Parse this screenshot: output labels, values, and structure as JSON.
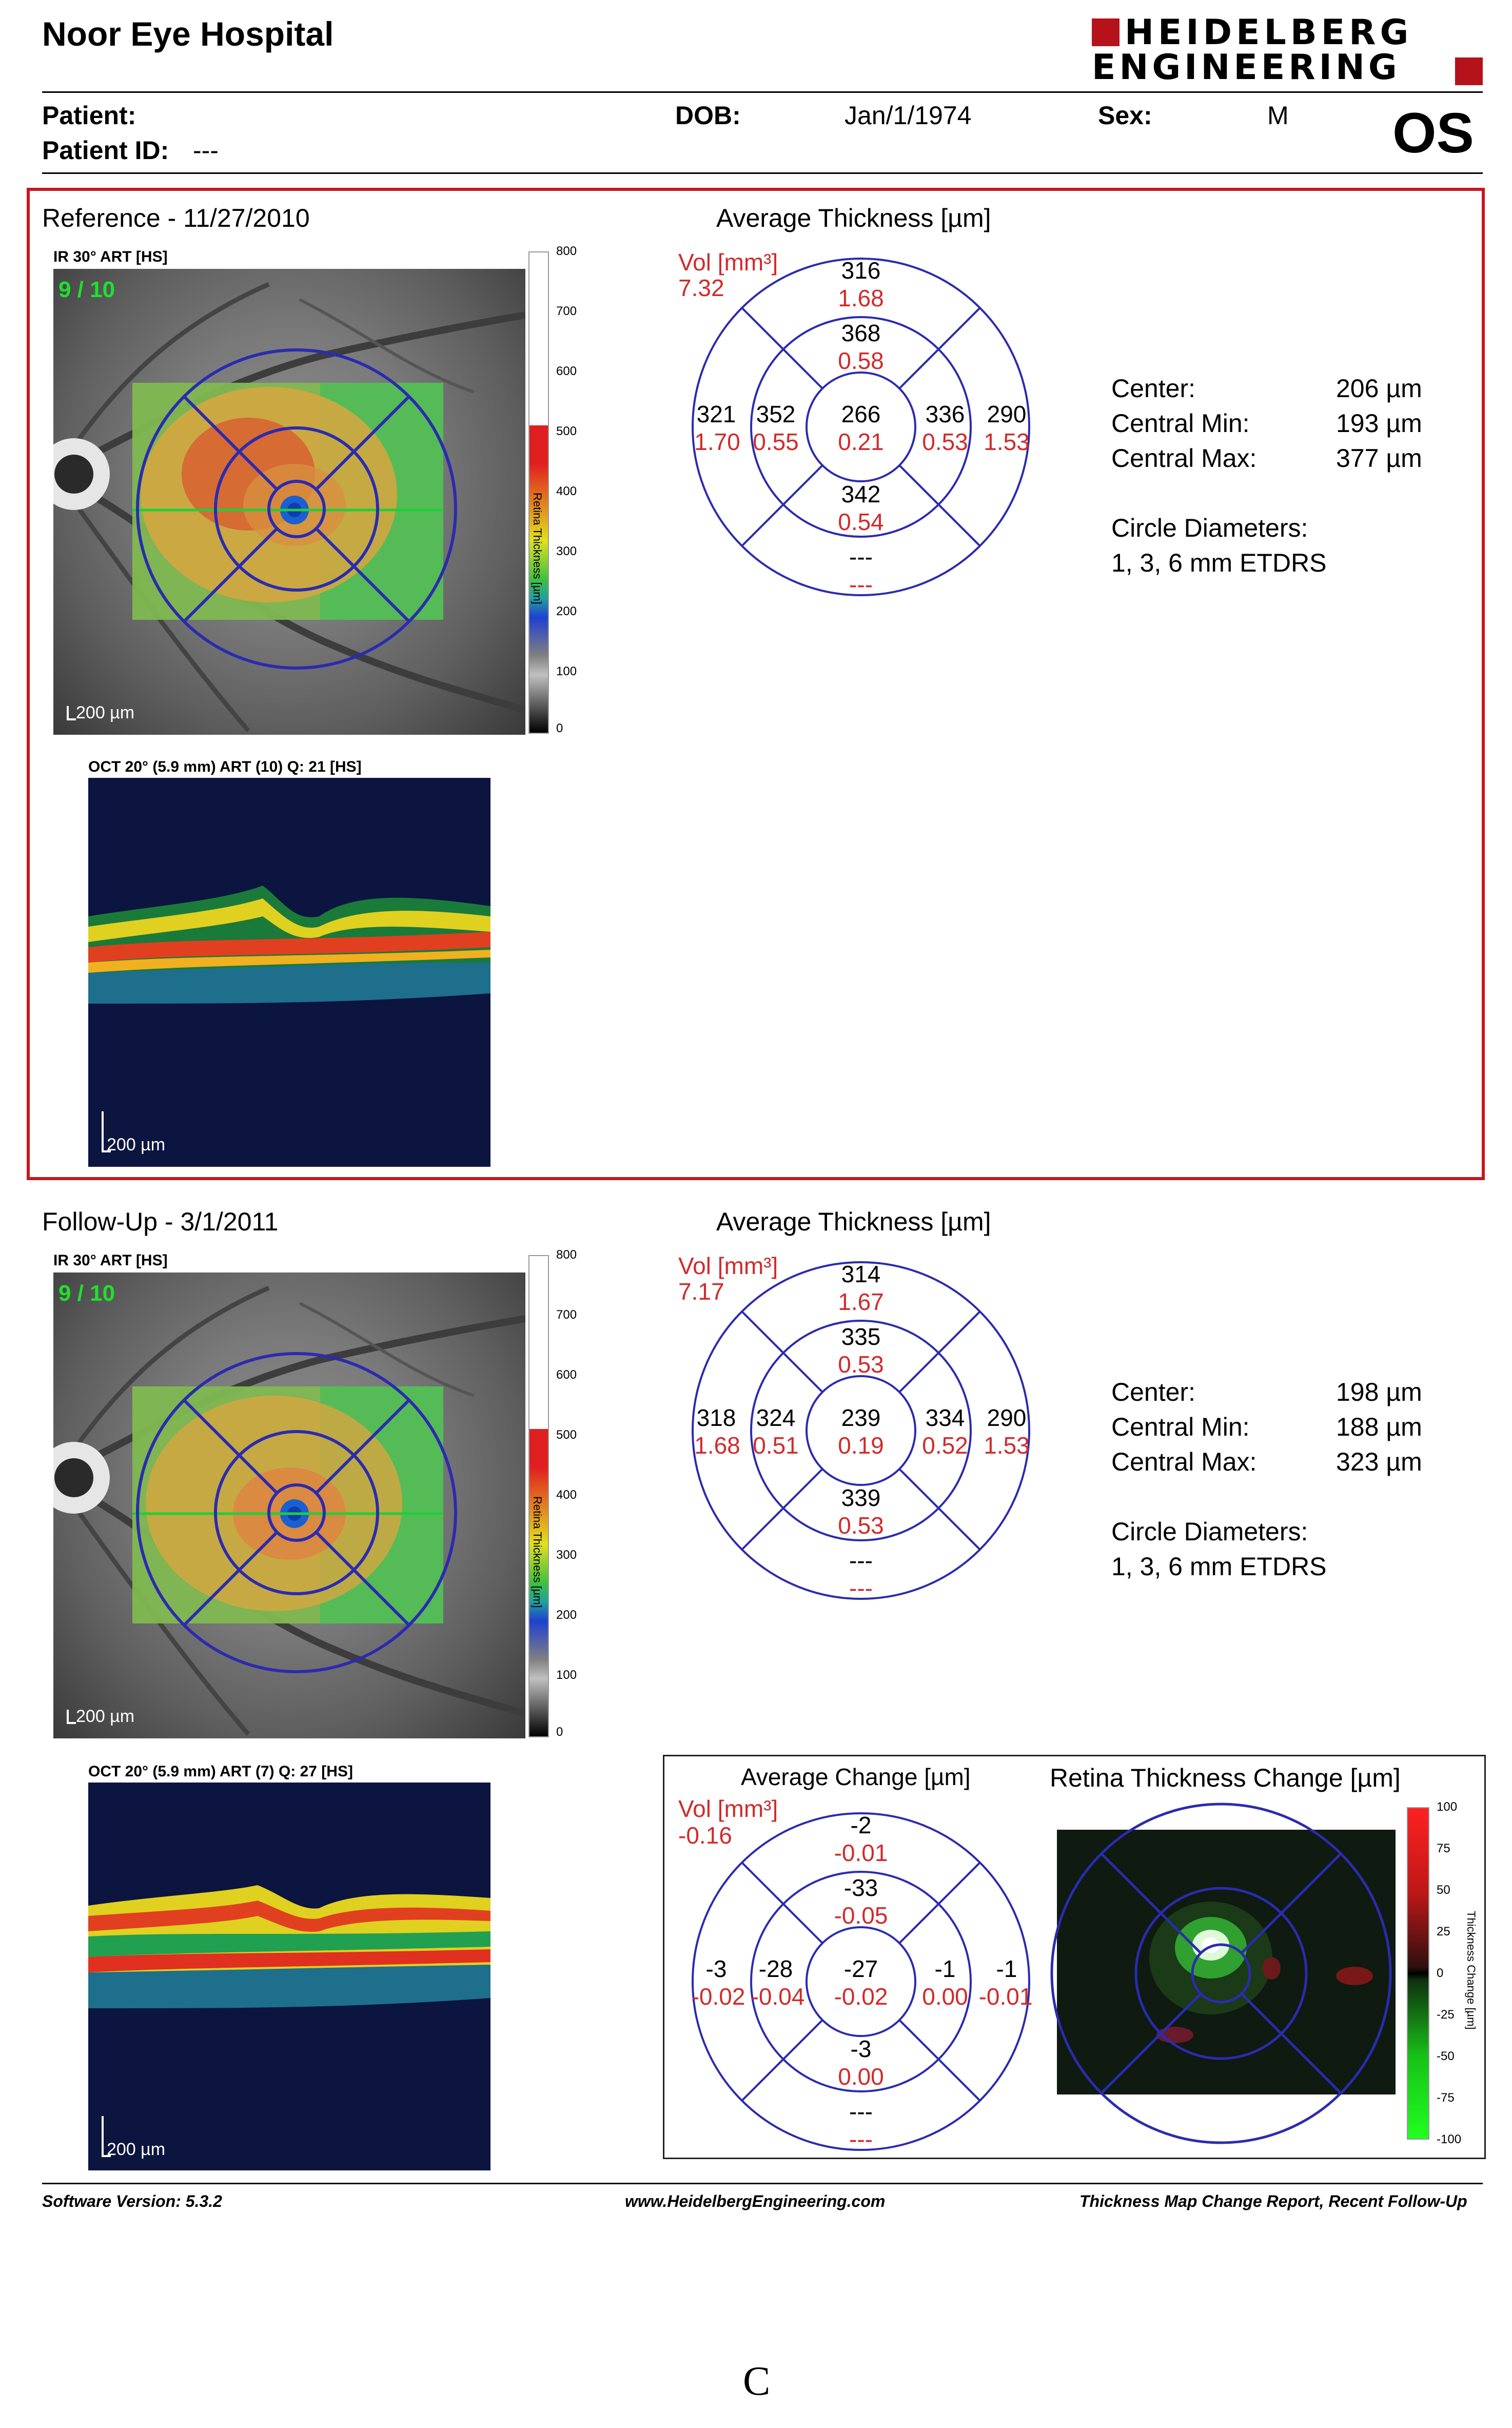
{
  "header": {
    "hospital": "Noor Eye Hospital",
    "logo_line1": "HEIDELBERG",
    "logo_line2": "ENGINEERING",
    "patient_label": "Patient:",
    "patient_id_label": "Patient ID:",
    "patient_id_value": "---",
    "dob_label": "DOB:",
    "dob_value": "Jan/1/1974",
    "sex_label": "Sex:",
    "sex_value": "M",
    "eye": "OS"
  },
  "reference": {
    "title": "Reference - 11/27/2010",
    "ir_label": "IR 30° ART [HS]",
    "ir_overlay": "9 / 10",
    "ir_scale": "200 µm",
    "oct_label": "OCT 20° (5.9 mm) ART (10) Q: 21 [HS]",
    "oct_scale": "200 µm",
    "colorbar_ticks": [
      "800",
      "700",
      "600",
      "500",
      "400",
      "300",
      "200",
      "100",
      "0"
    ],
    "colorbar_title": "Retina Thickness [µm]",
    "avg_title": "Average Thickness [µm]",
    "vol_label": "Vol [mm³]",
    "vol_value": "7.32",
    "grid": {
      "outer_top": [
        "316",
        "1.68"
      ],
      "inner_top": [
        "368",
        "0.58"
      ],
      "outer_left": [
        "321",
        "1.70"
      ],
      "inner_left": [
        "352",
        "0.55"
      ],
      "center": [
        "266",
        "0.21"
      ],
      "inner_right": [
        "336",
        "0.53"
      ],
      "outer_right": [
        "290",
        "1.53"
      ],
      "inner_bottom": [
        "342",
        "0.54"
      ],
      "outer_bottom": [
        "---",
        "---"
      ]
    },
    "stats": [
      {
        "label": "Center:",
        "value": "206 µm"
      },
      {
        "label": "Central Min:",
        "value": "193 µm"
      },
      {
        "label": "Central Max:",
        "value": "377 µm"
      }
    ],
    "circle_label": "Circle Diameters:",
    "circle_value": "1, 3, 6 mm ETDRS"
  },
  "followup": {
    "title": "Follow-Up - 3/1/2011",
    "ir_label": "IR 30° ART [HS]",
    "ir_overlay": "9 / 10",
    "ir_scale": "200 µm",
    "oct_label": "OCT 20° (5.9 mm) ART (7) Q: 27 [HS]",
    "oct_scale": "200 µm",
    "colorbar_ticks": [
      "800",
      "700",
      "600",
      "500",
      "400",
      "300",
      "200",
      "100",
      "0"
    ],
    "colorbar_title": "Retina Thickness [µm]",
    "avg_title": "Average Thickness [µm]",
    "vol_label": "Vol [mm³]",
    "vol_value": "7.17",
    "grid": {
      "outer_top": [
        "314",
        "1.67"
      ],
      "inner_top": [
        "335",
        "0.53"
      ],
      "outer_left": [
        "318",
        "1.68"
      ],
      "inner_left": [
        "324",
        "0.51"
      ],
      "center": [
        "239",
        "0.19"
      ],
      "inner_right": [
        "334",
        "0.52"
      ],
      "outer_right": [
        "290",
        "1.53"
      ],
      "inner_bottom": [
        "339",
        "0.53"
      ],
      "outer_bottom": [
        "---",
        "---"
      ]
    },
    "stats": [
      {
        "label": "Center:",
        "value": "198 µm"
      },
      {
        "label": "Central Min:",
        "value": "188 µm"
      },
      {
        "label": "Central Max:",
        "value": "323 µm"
      }
    ],
    "circle_label": "Circle Diameters:",
    "circle_value": "1, 3, 6 mm ETDRS"
  },
  "change": {
    "avg_title": "Average Change [µm]",
    "map_title": "Retina Thickness Change [µm]",
    "vol_label": "Vol [mm³]",
    "vol_value": "-0.16",
    "grid": {
      "outer_top": [
        "-2",
        "-0.01"
      ],
      "inner_top": [
        "-33",
        "-0.05"
      ],
      "outer_left": [
        "-3",
        "-0.02"
      ],
      "inner_left": [
        "-28",
        "-0.04"
      ],
      "center": [
        "-27",
        "-0.02"
      ],
      "inner_right": [
        "-1",
        "0.00"
      ],
      "outer_right": [
        "-1",
        "-0.01"
      ],
      "inner_bottom": [
        "-3",
        "0.00"
      ],
      "outer_bottom": [
        "---",
        "---"
      ]
    },
    "colorbar_ticks": [
      "100",
      "75",
      "50",
      "25",
      "0",
      "-25",
      "-50",
      "-75",
      "-100"
    ],
    "colorbar_title": "Thickness Change [µm]"
  },
  "footer": {
    "software": "Software Version: 5.3.2",
    "website": "www.HeidelbergEngineering.com",
    "report": "Thickness Map Change Report, Recent Follow-Up"
  },
  "caption": "C",
  "colors": {
    "accent_red": "#b5121b",
    "value_red": "#d22a2a",
    "etdrs_blue": "#2b2bb0"
  }
}
